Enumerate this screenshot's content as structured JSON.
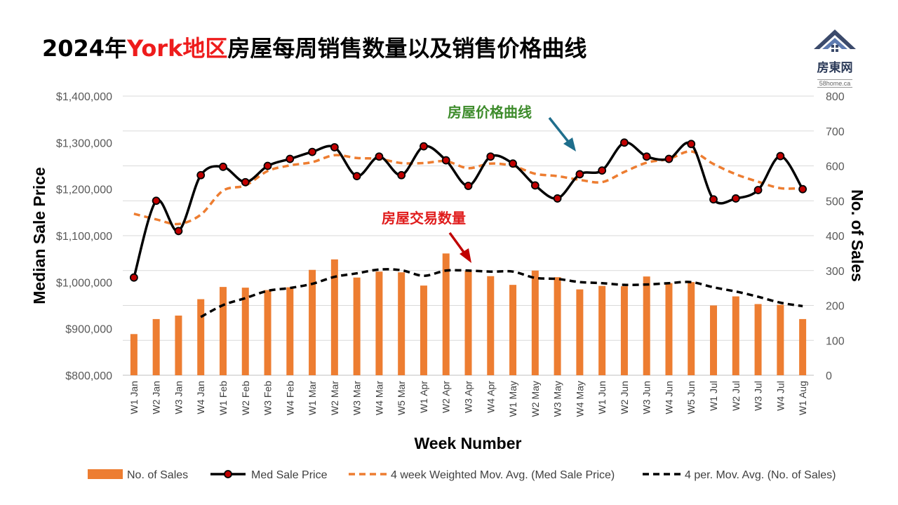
{
  "title": {
    "prefix": "2024年",
    "highlight": "York地区",
    "suffix": "房屋每周销售数量以及销售价格曲线"
  },
  "logo": {
    "name": "房東网",
    "url": "58home.ca",
    "icon": "house-roof-icon"
  },
  "annotations": {
    "price_curve": "房屋价格曲线",
    "sales_volume": "房屋交易数量"
  },
  "colors": {
    "bars": "#ed7d31",
    "price_line": "#000000",
    "price_marker_fill": "#c00000",
    "price_mavg": "#ed7d31",
    "sales_mavg": "#000000",
    "anno_price_text": "#3e8c2c",
    "anno_price_arrow": "#1f6e8c",
    "anno_sales_text": "#e01c1c",
    "anno_sales_arrow": "#c00000"
  },
  "chart_data": {
    "type": "bar+line",
    "xlabel": "Week Number",
    "ylabel_left": "Median Sale Price",
    "ylabel_right": "No. of Sales",
    "ylim_left": [
      800000,
      1400000
    ],
    "ylim_right": [
      0,
      800
    ],
    "yticks_left": [
      "$800,000",
      "$900,000",
      "$1,000,000",
      "$1,100,000",
      "$1,200,000",
      "$1,300,000",
      "$1,400,000"
    ],
    "yticks_right": [
      "0",
      "100",
      "200",
      "300",
      "400",
      "500",
      "600",
      "700",
      "800"
    ],
    "grid": "horizontal",
    "legend_position": "bottom",
    "categories": [
      "W1 Jan",
      "W2 Jan",
      "W3 Jan",
      "W4 Jan",
      "W1 Feb",
      "W2 Feb",
      "W3 Feb",
      "W4 Feb",
      "W1 Mar",
      "W2 Mar",
      "W3 Mar",
      "W4 Mar",
      "W5 Mar",
      "W1 Apr",
      "W2 Apr",
      "W3 Apr",
      "W4 Apr",
      "W1 May",
      "W2 May",
      "W3 May",
      "W4 May",
      "W1 Jun",
      "W2 Jun",
      "W3 Jun",
      "W4 Jun",
      "W5 Jun",
      "W1 Jul",
      "W2 Jul",
      "W3 Jul",
      "W4 Jul",
      "W1 Aug"
    ],
    "series": [
      {
        "name": "No. of Sales",
        "type": "bar",
        "axis": "right",
        "values": [
          118,
          161,
          171,
          218,
          253,
          251,
          244,
          252,
          302,
          332,
          280,
          297,
          295,
          257,
          349,
          299,
          284,
          259,
          300,
          281,
          246,
          256,
          255,
          283,
          264,
          267,
          200,
          226,
          204,
          202,
          161
        ]
      },
      {
        "name": "Med Sale Price",
        "type": "line",
        "axis": "left",
        "values": [
          1010000,
          1175000,
          1110000,
          1230000,
          1248000,
          1215000,
          1250000,
          1265000,
          1280000,
          1290000,
          1228000,
          1270000,
          1230000,
          1292000,
          1262000,
          1207000,
          1270000,
          1255000,
          1208000,
          1180000,
          1232000,
          1240000,
          1300000,
          1270000,
          1265000,
          1297000,
          1178000,
          1180000,
          1198000,
          1271000,
          1200000
        ]
      },
      {
        "name": "4 week Weighted Mov. Avg. (Med Sale Price)",
        "type": "line-dashed",
        "axis": "left",
        "values": [
          1147000,
          1135000,
          1125000,
          1145000,
          1197000,
          1208000,
          1239000,
          1251000,
          1258000,
          1273000,
          1267000,
          1265000,
          1256000,
          1256000,
          1260000,
          1245000,
          1255000,
          1250000,
          1233000,
          1228000,
          1220000,
          1215000,
          1237000,
          1257000,
          1265000,
          1281000,
          1254000,
          1232000,
          1216000,
          1202000,
          1202000
        ]
      },
      {
        "name": "4 per. Mov. Avg. (No. of Sales)",
        "type": "line-dashed",
        "axis": "right",
        "values": [
          null,
          null,
          null,
          167,
          201,
          221,
          242,
          250,
          262,
          282,
          292,
          303,
          301,
          285,
          300,
          300,
          297,
          297,
          279,
          276,
          267,
          264,
          259,
          260,
          264,
          267,
          252,
          240,
          225,
          208,
          198
        ]
      }
    ]
  }
}
